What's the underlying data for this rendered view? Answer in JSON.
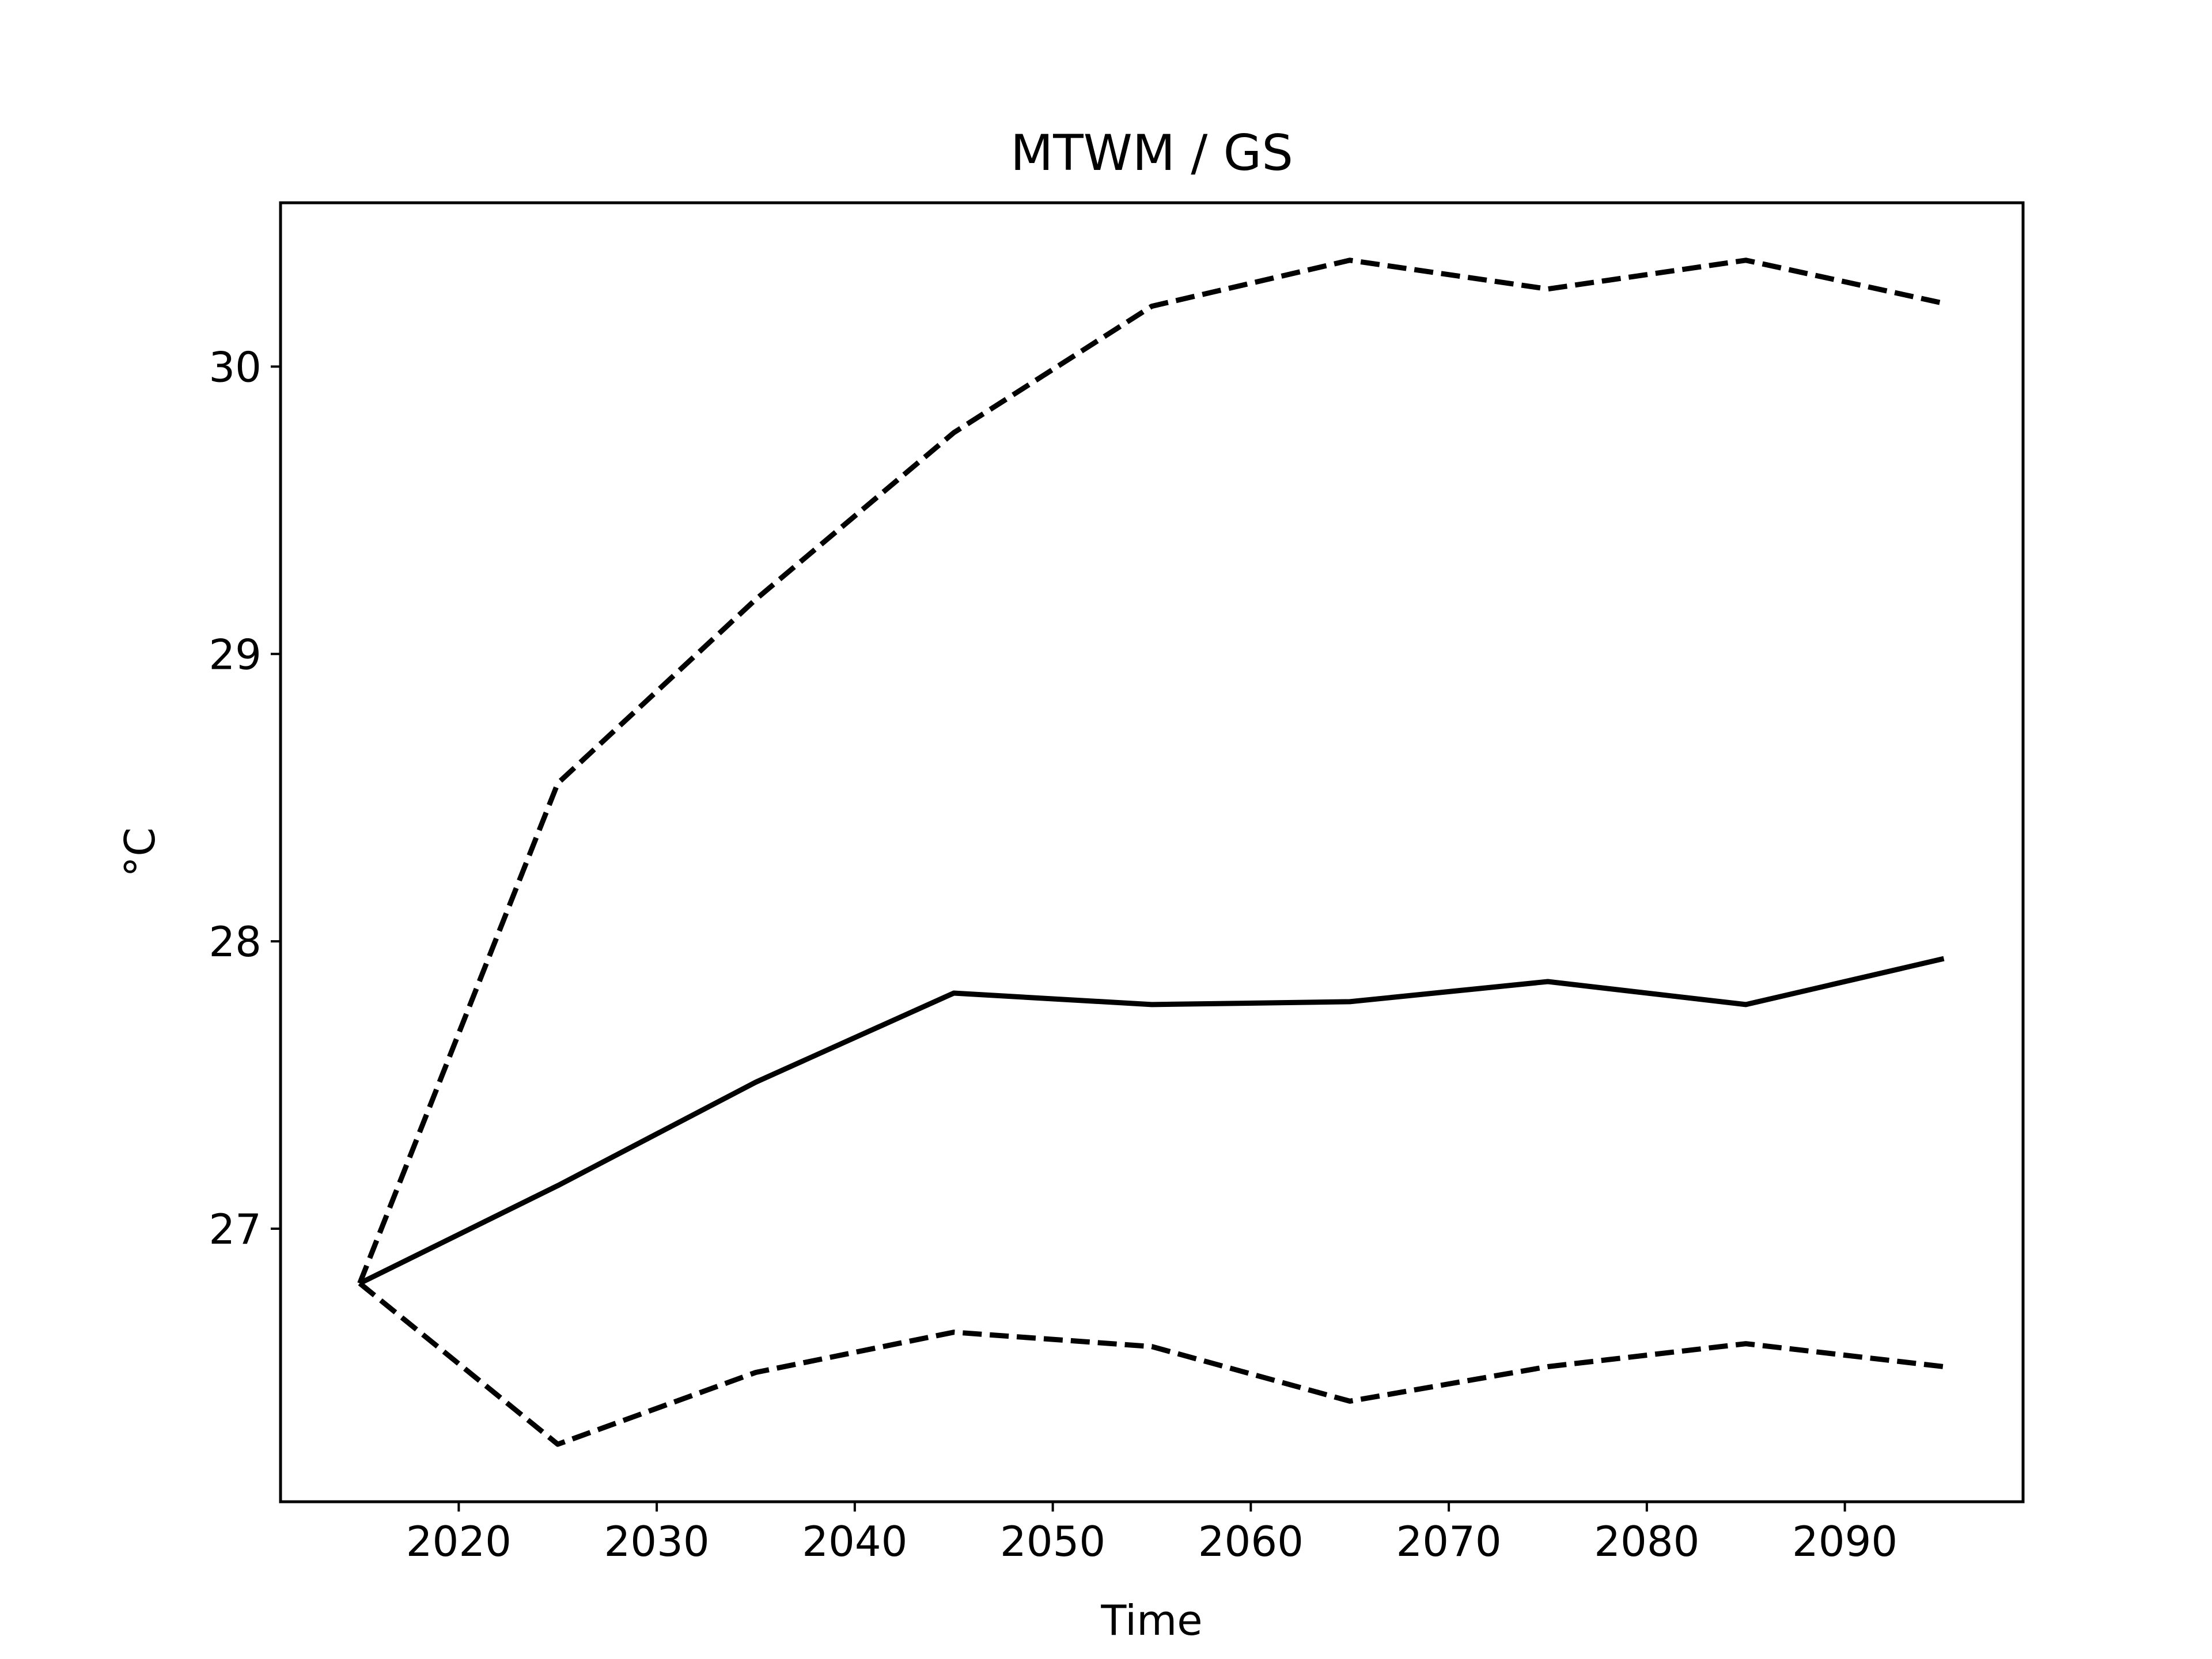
{
  "chart_data": {
    "type": "line",
    "title": "MTWM / GS",
    "xlabel": "Time",
    "ylabel": "°C",
    "xlim": [
      2011,
      2099
    ],
    "ylim": [
      26.05,
      30.57
    ],
    "x_ticks": [
      2020,
      2030,
      2040,
      2050,
      2060,
      2070,
      2080,
      2090
    ],
    "y_ticks": [
      27,
      28,
      29,
      30
    ],
    "grid": false,
    "legend": "none",
    "x": [
      2015,
      2025,
      2035,
      2045,
      2055,
      2065,
      2075,
      2085,
      2095
    ],
    "series": [
      {
        "style": "solid",
        "color": "#000000",
        "values": [
          26.81,
          27.15,
          27.51,
          27.82,
          27.78,
          27.79,
          27.86,
          27.78,
          27.94
        ]
      },
      {
        "style": "dashed",
        "color": "#000000",
        "values": [
          26.81,
          28.55,
          29.19,
          29.77,
          30.21,
          30.37,
          30.27,
          30.37,
          30.22
        ]
      },
      {
        "style": "dashed",
        "color": "#000000",
        "values": [
          26.81,
          26.25,
          26.5,
          26.64,
          26.59,
          26.4,
          26.52,
          26.6,
          26.52
        ]
      }
    ]
  }
}
